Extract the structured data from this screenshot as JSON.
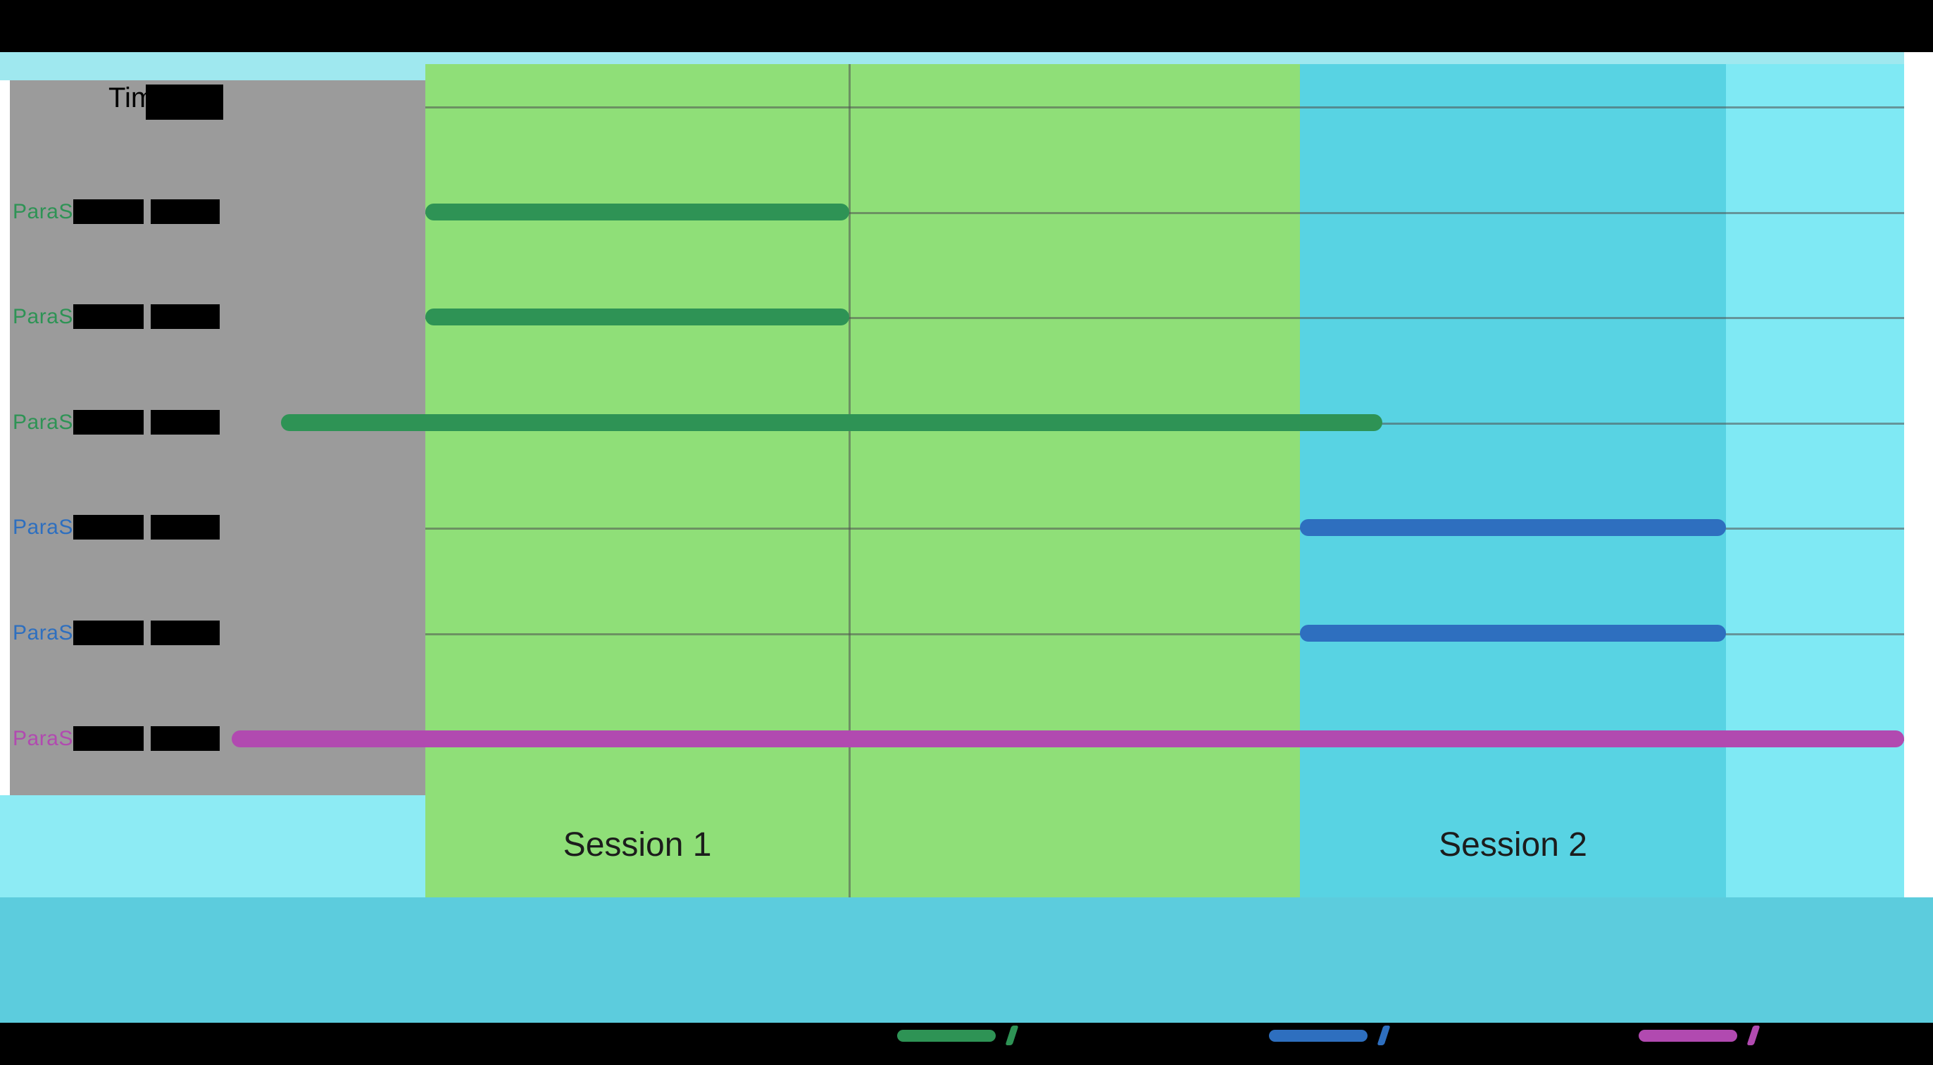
{
  "top": {
    "time_label": "Time"
  },
  "colors": {
    "letterbox": "#000000",
    "strip_top": "#9fe8ef",
    "session_underband": "#8debf4",
    "footer_band": "#5cccdd",
    "gridline": "rgba(80,80,80,0.55)"
  },
  "chart_data": {
    "type": "bar",
    "subtype": "horizontal-gantt-timeline",
    "title": "",
    "xlabel": "Time",
    "ylabel": "",
    "x_axis": {
      "range": [
        0,
        1
      ],
      "units": "fraction-of-timeline-width",
      "tick_labels_visible": false
    },
    "note": "Row labels and legend text are partially obscured by black boxes in the source image; bar extents estimated from pixels.",
    "layout": {
      "vline_frac": 0.373,
      "grid": "horizontal-per-row",
      "legend_position": "bottom"
    },
    "regions": [
      {
        "label": "",
        "color": "#9b9b9b",
        "start": 0.0,
        "end": 0.121,
        "gutter": true
      },
      {
        "label": "Session 1",
        "color": "#8fdf78",
        "start": 0.121,
        "end": 0.641,
        "label_center_frac": 0.247
      },
      {
        "label": "Session 2",
        "color": "#58d3e3",
        "start": 0.641,
        "end": 0.894,
        "label_center_frac": 0.7675
      },
      {
        "label": "",
        "color": "#7fe9f4",
        "start": 0.894,
        "end": 1.0
      }
    ],
    "rows": [
      {
        "label": "ParaSess-1",
        "color": "#2e9355",
        "start": 0.121,
        "end": 0.373
      },
      {
        "label": "ParaSess-2",
        "color": "#2e9355",
        "start": 0.121,
        "end": 0.373
      },
      {
        "label": "ParaSess-3",
        "color": "#2e9355",
        "start": 0.035,
        "end": 0.69
      },
      {
        "label": "ParaSess-4",
        "color": "#2e6fbf",
        "start": 0.641,
        "end": 0.894
      },
      {
        "label": "ParaSess-5",
        "color": "#2e6fbf",
        "start": 0.641,
        "end": 0.894
      },
      {
        "label": "ParaSess-6",
        "color": "#b14ab0",
        "start": 0.006,
        "end": 1.0
      }
    ],
    "legend": {
      "entries": [
        {
          "color": "#2e9355",
          "label": "",
          "redacted": true
        },
        {
          "color": "#2e6fbf",
          "label": "",
          "redacted": true
        },
        {
          "color": "#b14ab0",
          "label": "",
          "redacted": true
        }
      ]
    }
  }
}
